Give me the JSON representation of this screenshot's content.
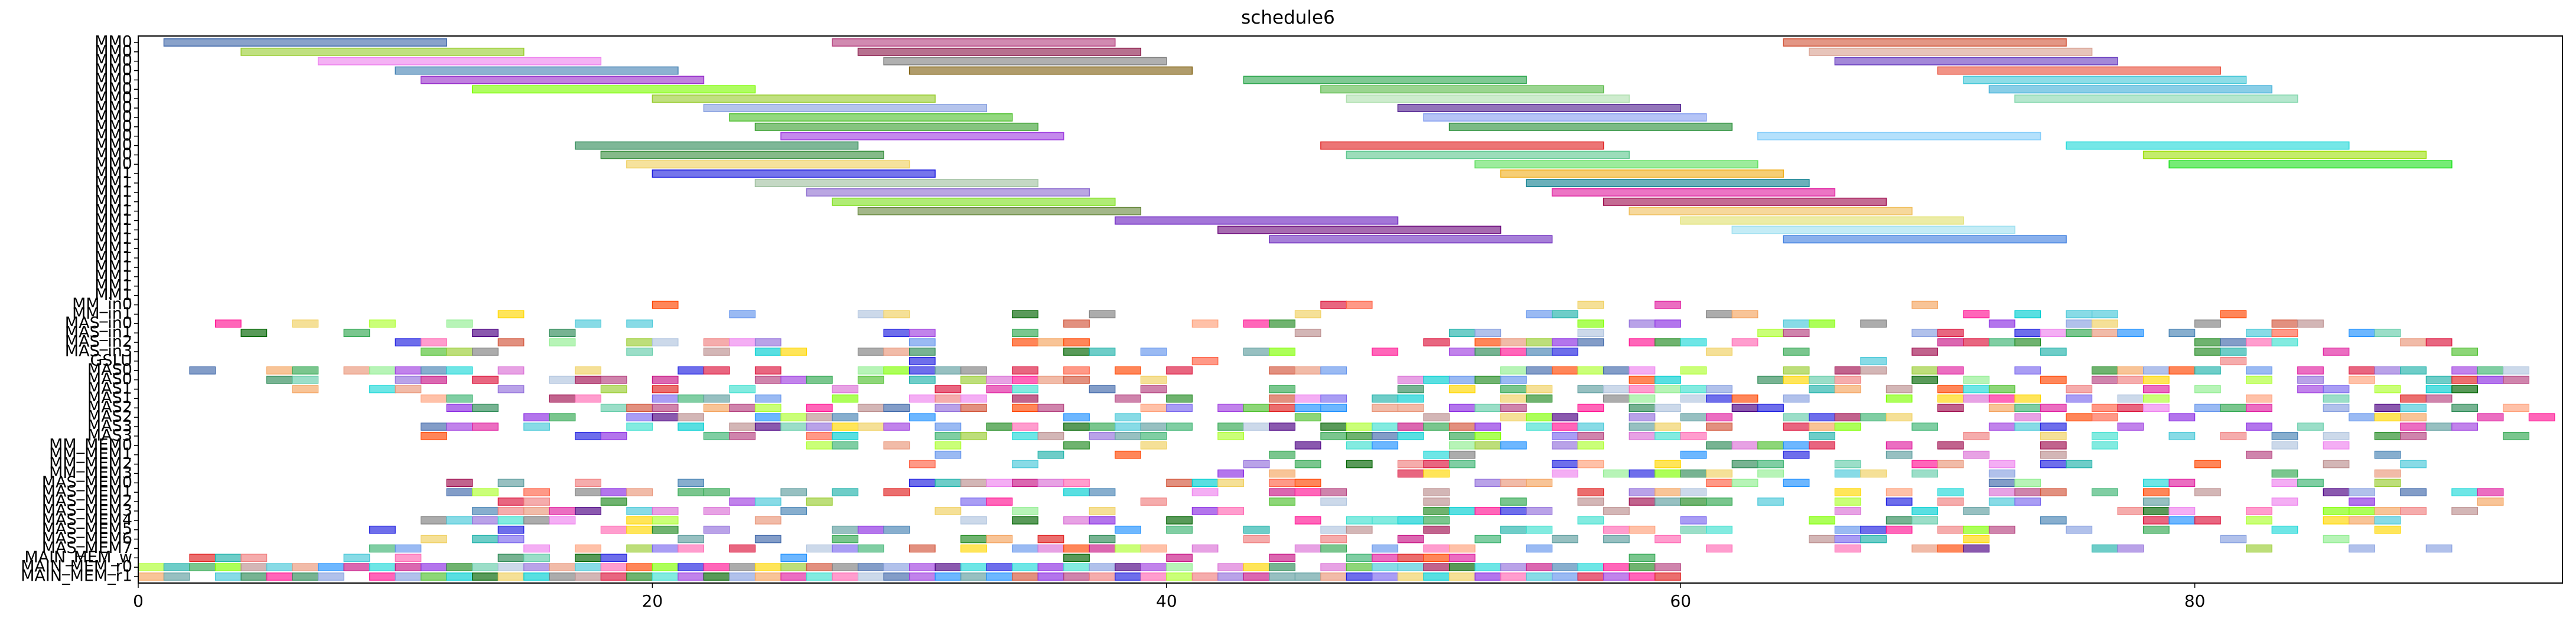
{
  "chart_data": {
    "type": "gantt",
    "title": "schedule6",
    "xlabel": "",
    "ylabel": "",
    "xlim": [
      0,
      94.3
    ],
    "x_ticks": [
      0,
      20,
      40,
      60,
      80
    ],
    "grid": false,
    "legend": "none",
    "rows": [
      "MM0",
      "MM0",
      "MM0",
      "MM0",
      "MM0",
      "MM0",
      "MM0",
      "MM0",
      "MM0",
      "MM0",
      "MM0",
      "MM0",
      "MM0",
      "MM0",
      "MM1",
      "MM1",
      "MM1",
      "MM1",
      "MM1",
      "MM1",
      "MM1",
      "MM1",
      "MM1",
      "MM1",
      "MM1",
      "MM1",
      "MM1",
      "MM1",
      "MM_in0",
      "MM_in1",
      "MAS_in0",
      "MAS_in1",
      "MAS_in2",
      "MAS_in3",
      "GSLU",
      "MAS0",
      "MAS0",
      "MAS1",
      "MAS1",
      "MAS2",
      "MAS2",
      "MAS3",
      "MAS3",
      "MM_MEM0",
      "MM_MEM1",
      "MM_MEM2",
      "MM_MEM3",
      "MAS_MEM0",
      "MAS_MEM1",
      "MAS_MEM2",
      "MAS_MEM3",
      "MAS_MEM4",
      "MAS_MEM5",
      "MAS_MEM6",
      "MAS_MEM7",
      "MAIN_MEM_w",
      "MAIN_MEM_r0",
      "MAIN_MEM_r1"
    ],
    "row_tasks": [
      [
        [
          1,
          12,
          "#4169aa"
        ],
        [
          27,
          38,
          "#b5427f"
        ],
        [
          64,
          75,
          "#d2553a"
        ]
      ],
      [
        [
          4,
          15,
          "#9acd32"
        ],
        [
          28,
          39,
          "#8b1a4a"
        ],
        [
          65,
          76,
          "#d8a090"
        ]
      ],
      [
        [
          7,
          18,
          "#ee82ee"
        ],
        [
          29,
          40,
          "#808080"
        ],
        [
          66,
          77,
          "#6a3fc0"
        ]
      ],
      [
        [
          10,
          21,
          "#4682b4"
        ],
        [
          30,
          41,
          "#806010"
        ],
        [
          70,
          81,
          "#e8503c"
        ]
      ],
      [
        [
          11,
          22,
          "#9932cc"
        ],
        [
          43,
          54,
          "#32a852"
        ],
        [
          71,
          82,
          "#48c8d8"
        ]
      ],
      [
        [
          13,
          24,
          "#7cfc00"
        ],
        [
          46,
          57,
          "#5cbb4c"
        ],
        [
          72,
          83,
          "#40b0d8"
        ]
      ],
      [
        [
          20,
          31,
          "#9acd32"
        ],
        [
          47,
          58,
          "#b0e0b0"
        ],
        [
          73,
          84,
          "#88d8b0"
        ]
      ],
      [
        [
          22,
          33,
          "#87a0e0"
        ],
        [
          49,
          60,
          "#502090"
        ]
      ],
      [
        [
          23,
          34,
          "#50c030"
        ],
        [
          50,
          61,
          "#87a0f0"
        ]
      ],
      [
        [
          24,
          35,
          "#3aa030"
        ],
        [
          51,
          62,
          "#2a8f3a"
        ]
      ],
      [
        [
          25,
          36,
          "#a040e0"
        ],
        [
          63,
          74,
          "#87cefa"
        ]
      ],
      [
        [
          17,
          28,
          "#2e8b57"
        ],
        [
          46,
          57,
          "#e02020"
        ],
        [
          75,
          86,
          "#20d8d8"
        ]
      ],
      [
        [
          18,
          29,
          "#3a9040"
        ],
        [
          47,
          58,
          "#60c890"
        ],
        [
          78,
          89,
          "#9fe010"
        ]
      ],
      [
        [
          19,
          30,
          "#f0d060"
        ],
        [
          52,
          63,
          "#60e060"
        ],
        [
          79,
          90,
          "#20e020"
        ]
      ],
      [
        [
          20,
          31,
          "#2020e0"
        ],
        [
          53,
          64,
          "#f0b020"
        ]
      ],
      [
        [
          24,
          35,
          "#a0c0a0"
        ],
        [
          54,
          65,
          "#108090"
        ]
      ],
      [
        [
          26,
          37,
          "#9070d0"
        ],
        [
          55,
          66,
          "#e020a0"
        ]
      ],
      [
        [
          27,
          38,
          "#80e020"
        ],
        [
          57,
          68,
          "#a01050"
        ]
      ],
      [
        [
          28,
          39,
          "#6a8a40"
        ],
        [
          58,
          69,
          "#f0c060"
        ]
      ],
      [
        [
          38,
          49,
          "#6a20c0"
        ],
        [
          60,
          71,
          "#e0e070"
        ]
      ],
      [
        [
          42,
          53,
          "#701080"
        ],
        [
          62,
          73,
          "#a0e0f0"
        ]
      ],
      [
        [
          44,
          55,
          "#7030c0"
        ],
        [
          64,
          75,
          "#4080e0"
        ]
      ]
    ],
    "grid_rows": [
      "MM_in0",
      "MM_in1",
      "MAS_in0",
      "MAS_in1",
      "MAS_in2",
      "MAS_in3",
      "GSLU",
      "MAS0",
      "MAS0",
      "MAS1",
      "MAS1",
      "MAS2",
      "MAS2",
      "MAS3",
      "MAS3",
      "MM_MEM0",
      "MM_MEM1",
      "MM_MEM2",
      "MM_MEM3",
      "MAS_MEM0",
      "MAS_MEM1",
      "MAS_MEM2",
      "MAS_MEM3",
      "MAS_MEM4",
      "MAS_MEM5",
      "MAS_MEM6",
      "MAS_MEM7",
      "MAIN_MEM_w",
      "MAIN_MEM_r0",
      "MAIN_MEM_r1"
    ],
    "grid_start_row": 28,
    "grid_density": [
      0.12,
      0.25,
      0.3,
      0.32,
      0.38,
      0.4,
      0.08,
      0.45,
      0.5,
      0.5,
      0.5,
      0.55,
      0.5,
      0.45,
      0.4,
      0.35,
      0.3,
      0.3,
      0.3,
      0.4,
      0.4,
      0.4,
      0.4,
      0.4,
      0.4,
      0.4,
      0.4,
      0.35,
      0.95,
      0.95
    ],
    "grid_ranges": [
      [
        0,
        80
      ],
      [
        14,
        82
      ],
      [
        1,
        88
      ],
      [
        4,
        88
      ],
      [
        10,
        90
      ],
      [
        11,
        94
      ],
      [
        12,
        94
      ],
      [
        2,
        93
      ],
      [
        3,
        93
      ],
      [
        5,
        93
      ],
      [
        11,
        93
      ],
      [
        12,
        94
      ],
      [
        14,
        94
      ],
      [
        8,
        91
      ],
      [
        8,
        93
      ],
      [
        26,
        88
      ],
      [
        28,
        88
      ],
      [
        28,
        90
      ],
      [
        28,
        88
      ],
      [
        12,
        92
      ],
      [
        12,
        92
      ],
      [
        12,
        92
      ],
      [
        12,
        92
      ],
      [
        9,
        90
      ],
      [
        9,
        90
      ],
      [
        9,
        90
      ],
      [
        9,
        90
      ],
      [
        0,
        60
      ],
      [
        0,
        60
      ],
      [
        0,
        60
      ]
    ],
    "palette": [
      "#4169aa",
      "#b5427f",
      "#d2553a",
      "#9acd32",
      "#ee82ee",
      "#32a852",
      "#48c8d8",
      "#87a0e0",
      "#a040e0",
      "#2e8b57",
      "#e02020",
      "#20d8d8",
      "#f0d060",
      "#2020e0",
      "#e020a0",
      "#a01050",
      "#808080",
      "#50c030",
      "#40e0d0",
      "#ff69b4",
      "#ffa07a",
      "#7b68ee",
      "#3cb371",
      "#ff4500",
      "#1e90ff",
      "#da70d6",
      "#90ee90",
      "#f4a460",
      "#6495ed",
      "#dc143c",
      "#00ced1",
      "#ffd700",
      "#9370db",
      "#20b2aa",
      "#ff6347",
      "#4682b4",
      "#adff2f",
      "#c71585",
      "#66cdaa",
      "#bc8f8f",
      "#006400",
      "#8a2be2",
      "#e9967a",
      "#5f9ea0",
      "#ff1493",
      "#7fff00",
      "#b0c4de",
      "#228b22",
      "#f08080",
      "#4b0082"
    ]
  }
}
